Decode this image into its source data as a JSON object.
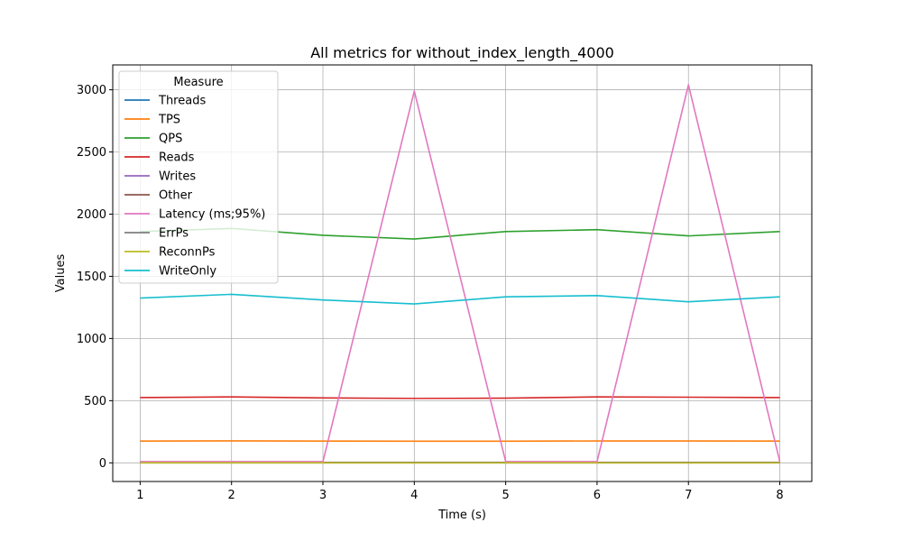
{
  "chart_data": {
    "type": "line",
    "title": "All metrics for without_index_length_4000",
    "xlabel": "Time (s)",
    "ylabel": "Values",
    "x": [
      1,
      2,
      3,
      4,
      5,
      6,
      7,
      8
    ],
    "xlim": [
      0.7,
      8.35
    ],
    "ylim": [
      -150,
      3200
    ],
    "xticks": [
      1,
      2,
      3,
      4,
      5,
      6,
      7,
      8
    ],
    "yticks": [
      0,
      500,
      1000,
      1500,
      2000,
      2500,
      3000
    ],
    "grid": true,
    "legend": {
      "title": "Measure",
      "placement": "top-left"
    },
    "series": [
      {
        "name": "Threads",
        "color": "#1f77b4",
        "values": [
          4,
          4,
          4,
          4,
          4,
          4,
          4,
          4
        ]
      },
      {
        "name": "TPS",
        "color": "#ff7f0e",
        "values": [
          175,
          177,
          175,
          174,
          174,
          176,
          176,
          175
        ]
      },
      {
        "name": "QPS",
        "color": "#2ca02c",
        "values": [
          1860,
          1885,
          1830,
          1800,
          1860,
          1875,
          1825,
          1860
        ]
      },
      {
        "name": "Reads",
        "color": "#d62728",
        "values": [
          525,
          530,
          522,
          518,
          520,
          530,
          528,
          525
        ]
      },
      {
        "name": "Writes",
        "color": "#9467bd",
        "values": [
          3,
          3,
          3,
          3,
          3,
          3,
          3,
          3
        ]
      },
      {
        "name": "Other",
        "color": "#8c564b",
        "values": [
          2,
          2,
          2,
          2,
          2,
          2,
          2,
          2
        ]
      },
      {
        "name": "Latency (ms;95%)",
        "color": "#e377c2",
        "values": [
          10,
          10,
          10,
          2990,
          10,
          10,
          3040,
          10
        ]
      },
      {
        "name": "ErrPs",
        "color": "#7f7f7f",
        "values": [
          0,
          0,
          0,
          0,
          0,
          0,
          0,
          0
        ]
      },
      {
        "name": "ReconnPs",
        "color": "#bcbd22",
        "values": [
          0,
          0,
          0,
          0,
          0,
          0,
          0,
          0
        ]
      },
      {
        "name": "WriteOnly",
        "color": "#17becf",
        "values": [
          1325,
          1355,
          1310,
          1278,
          1335,
          1345,
          1295,
          1335
        ]
      }
    ]
  }
}
